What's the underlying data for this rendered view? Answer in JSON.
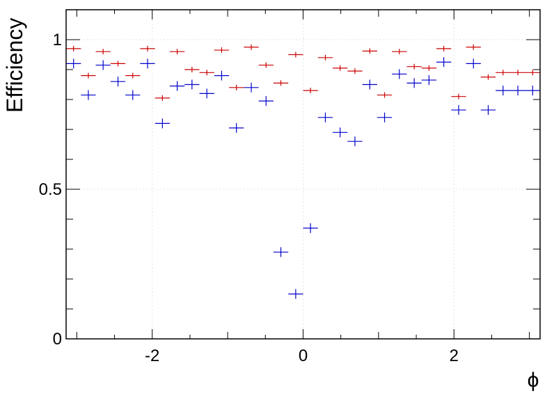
{
  "chart_data": {
    "type": "scatter",
    "xlabel": "ϕ",
    "ylabel": "Efficiency",
    "xlim": [
      -3.1416,
      3.1416
    ],
    "ylim": [
      0,
      1.1
    ],
    "grid": true,
    "x_tick_labels": [
      "-2",
      "0",
      "2"
    ],
    "y_tick_labels": [
      "0",
      "0.5",
      "1"
    ],
    "bin_half_width": 0.0982,
    "series": [
      {
        "color": "#cc0000",
        "x": [
          -3.043,
          -2.847,
          -2.651,
          -2.454,
          -2.258,
          -2.062,
          -1.865,
          -1.669,
          -1.473,
          -1.276,
          -1.08,
          -0.884,
          -0.687,
          -0.491,
          -0.295,
          -0.098,
          0.098,
          0.295,
          0.491,
          0.687,
          0.884,
          1.08,
          1.276,
          1.473,
          1.669,
          1.865,
          2.062,
          2.258,
          2.454,
          2.651,
          2.847,
          3.043
        ],
        "y": [
          0.97,
          0.88,
          0.96,
          0.92,
          0.88,
          0.97,
          0.805,
          0.96,
          0.9,
          0.89,
          0.965,
          0.84,
          0.975,
          0.915,
          0.855,
          0.95,
          0.83,
          0.94,
          0.905,
          0.895,
          0.962,
          0.815,
          0.96,
          0.91,
          0.905,
          0.97,
          0.81,
          0.975,
          0.875,
          0.89,
          0.89,
          0.89
        ]
      },
      {
        "color": "#0000cc",
        "x": [
          -3.043,
          -2.847,
          -2.651,
          -2.454,
          -2.258,
          -2.062,
          -1.865,
          -1.669,
          -1.473,
          -1.276,
          -1.08,
          -0.884,
          -0.687,
          -0.491,
          -0.295,
          -0.098,
          0.098,
          0.295,
          0.491,
          0.687,
          0.884,
          1.08,
          1.276,
          1.473,
          1.669,
          1.865,
          2.062,
          2.258,
          2.454,
          2.651,
          2.847,
          3.043
        ],
        "y": [
          0.92,
          0.815,
          0.915,
          0.86,
          0.815,
          0.92,
          0.72,
          0.845,
          0.85,
          0.82,
          0.88,
          0.705,
          0.84,
          0.795,
          0.29,
          0.15,
          0.37,
          0.74,
          0.69,
          0.66,
          0.85,
          0.74,
          0.885,
          0.855,
          0.865,
          0.925,
          0.765,
          0.92,
          0.765,
          0.83,
          0.83,
          0.83
        ]
      }
    ]
  }
}
